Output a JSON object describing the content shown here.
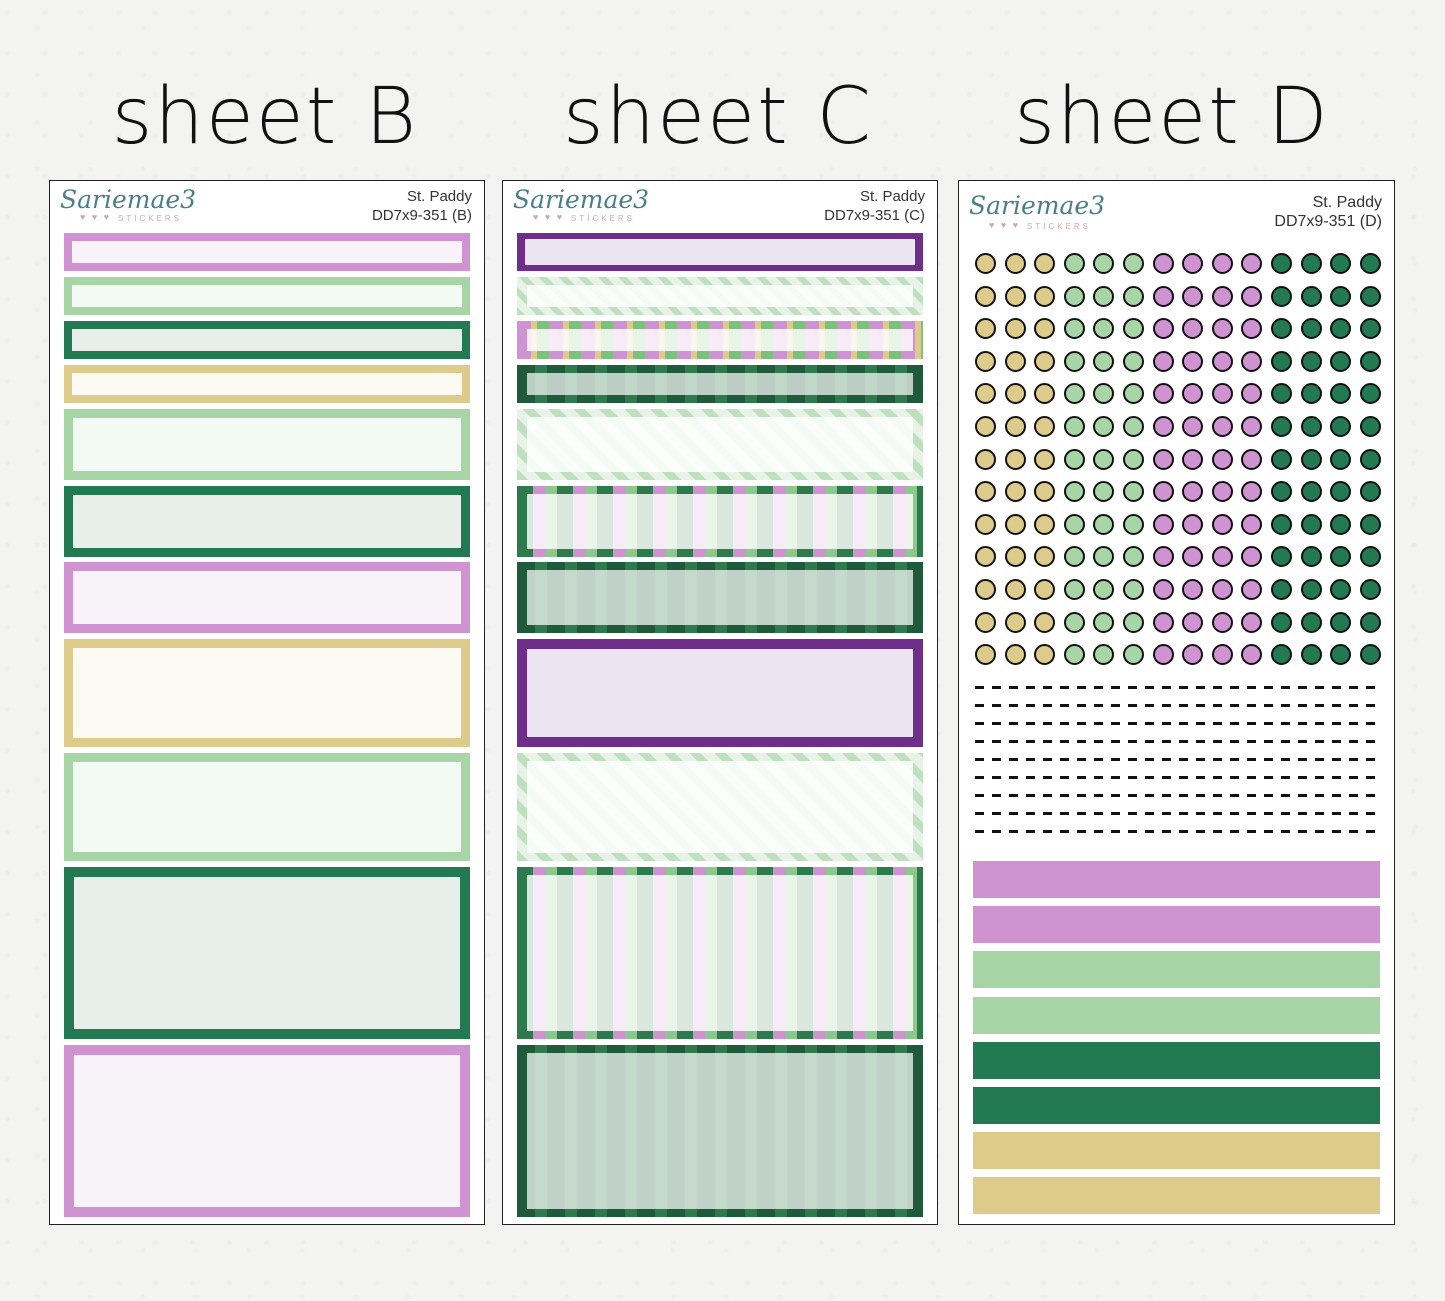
{
  "titles": {
    "b": "sheet B",
    "c": "sheet C",
    "d": "sheet D"
  },
  "brand": {
    "name": "Sariemae3",
    "sub": "STICKERS",
    "hearts": "♥ ♥ ♥"
  },
  "sheets": {
    "b": {
      "line1": "St. Paddy",
      "line2": "DD7x9-351 (B)"
    },
    "c": {
      "line1": "St. Paddy",
      "line2": "DD7x9-351 (C)"
    },
    "d": {
      "line1": "St. Paddy",
      "line2": "DD7x9-351 (D)"
    }
  },
  "colors": {
    "purple": "#cf93d2",
    "purple_fill": "#f8f2f9",
    "light_green": "#a8d5a6",
    "light_green_fill": "#f3f9f3",
    "dark_green": "#237a52",
    "dark_green_fill": "#e8efeb",
    "gold": "#dccb8a",
    "gold_fill": "#fbfaf2",
    "deep_purple": "#6e2f8a"
  },
  "sheet_d_dots": {
    "rows": 13,
    "pattern": [
      "gold",
      "gold",
      "gold",
      "light_green",
      "light_green",
      "light_green",
      "purple",
      "purple",
      "purple",
      "purple",
      "dark_green",
      "dark_green",
      "dark_green",
      "dark_green"
    ]
  },
  "sheet_d_dash_rows": 9,
  "sheet_d_strips": [
    "purple",
    "purple",
    "light_green",
    "light_green",
    "dark_green",
    "dark_green",
    "gold",
    "gold"
  ]
}
